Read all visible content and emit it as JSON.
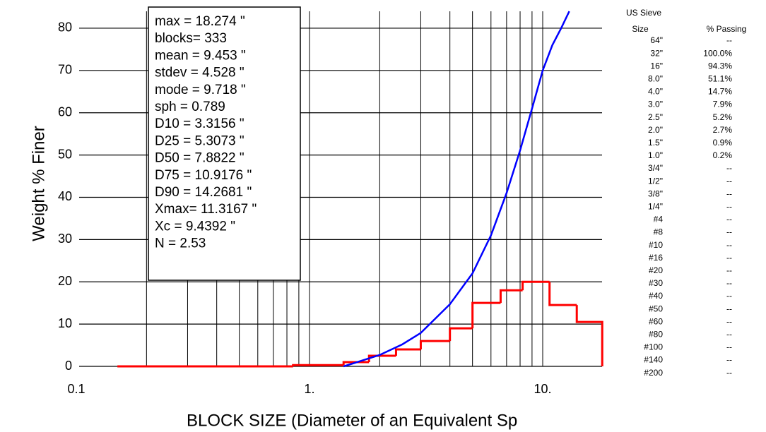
{
  "chart_data": {
    "type": "histogram",
    "y_label": "Weight % Finer",
    "x_label": "BLOCK SIZE (Diameter of an Equivalent Sp",
    "log_x": true,
    "grid": true,
    "xlim": [
      0.1,
      18
    ],
    "ylim": [
      0,
      84
    ],
    "xticks": [
      0.1,
      {
        "value": 1,
        "label": "1."
      },
      {
        "value": 10,
        "label": "10."
      }
    ],
    "yticks": [
      0,
      10,
      20,
      30,
      40,
      50,
      60,
      70,
      80
    ],
    "bins": [
      0.15,
      0.85,
      1.4,
      1.8,
      2.35,
      3,
      4,
      5,
      6.6,
      8.2,
      10.7,
      14,
      18
    ],
    "values": [
      0,
      0.3,
      1,
      2.5,
      4,
      6,
      9,
      15,
      18,
      20,
      14.5,
      10.5
    ],
    "color": "#ff0000",
    "curve": {
      "color": "#0000ff",
      "x": [
        1.4,
        1.6,
        2,
        2.5,
        3,
        4,
        5,
        6,
        7,
        8,
        9,
        10,
        11,
        12,
        13
      ],
      "values": [
        0,
        1,
        2.7,
        5.2,
        7.9,
        14.7,
        22,
        31,
        41,
        51.1,
        61,
        70,
        76,
        80,
        84
      ]
    },
    "stats": [
      "max  = 18.274 \"",
      "blocks= 333",
      "mean = 9.453 \"",
      "stdev = 4.528 \"",
      "mode = 9.718 \"",
      "sph   = 0.789",
      "D10 = 3.3156 \"",
      "D25 = 5.3073 \"",
      "D50 = 7.8822 \"",
      "D75 = 10.9176 \"",
      "D90 = 14.2681 \"",
      "Xmax= 11.3167 \"",
      "Xc  = 9.4392 \"",
      "N  = 2.53"
    ],
    "sieve_table": {
      "header": [
        "US Sieve",
        "Size",
        "% Passing"
      ],
      "rows": [
        [
          "64\"",
          "--"
        ],
        [
          "32\"",
          "100.0%"
        ],
        [
          "16\"",
          "94.3%"
        ],
        [
          "8.0\"",
          "51.1%"
        ],
        [
          "4.0\"",
          "14.7%"
        ],
        [
          "3.0\"",
          "7.9%"
        ],
        [
          "2.5\"",
          "5.2%"
        ],
        [
          "2.0\"",
          "2.7%"
        ],
        [
          "1.5\"",
          "0.9%"
        ],
        [
          "1.0\"",
          "0.2%"
        ],
        [
          "3/4\"",
          "--"
        ],
        [
          "1/2\"",
          "--"
        ],
        [
          "3/8\"",
          "--"
        ],
        [
          "1/4\"",
          "--"
        ],
        [
          "#4",
          "--"
        ],
        [
          "#8",
          "--"
        ],
        [
          "#10",
          "--"
        ],
        [
          "#16",
          "--"
        ],
        [
          "#20",
          "--"
        ],
        [
          "#30",
          "--"
        ],
        [
          "#40",
          "--"
        ],
        [
          "#50",
          "--"
        ],
        [
          "#60",
          "--"
        ],
        [
          "#80",
          "--"
        ],
        [
          "#100",
          "--"
        ],
        [
          "#140",
          "--"
        ],
        [
          "#200",
          "--"
        ]
      ]
    }
  }
}
